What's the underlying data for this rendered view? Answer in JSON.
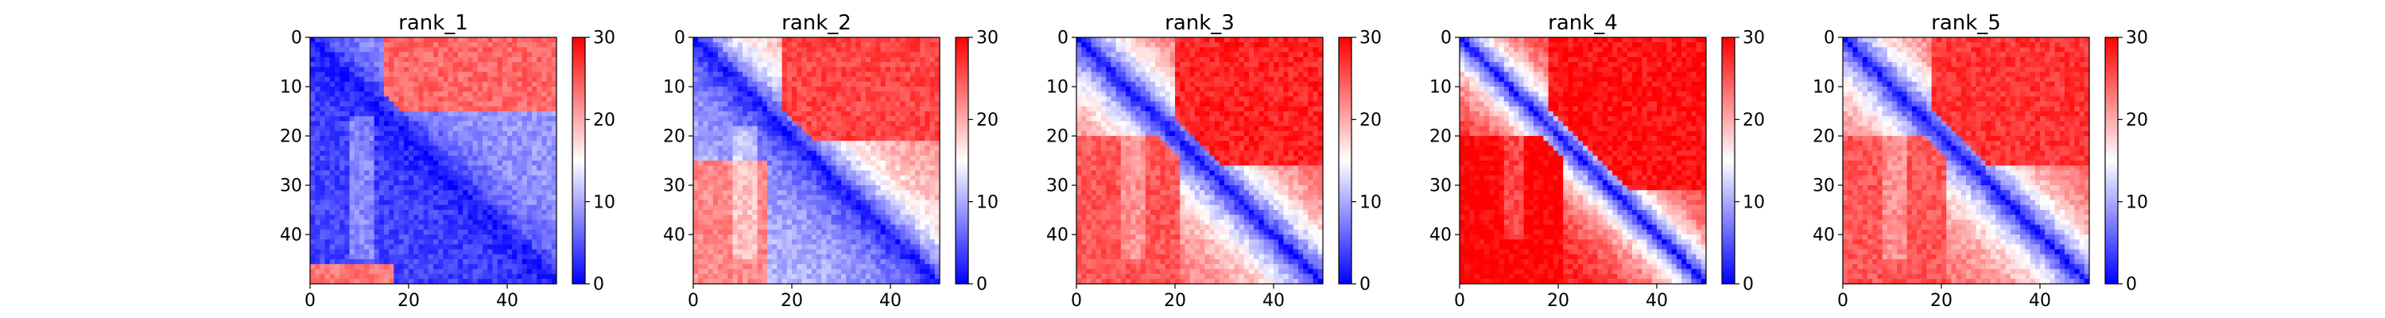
{
  "chart_data": [
    {
      "type": "heatmap",
      "title": "rank_1",
      "size": 50,
      "x_ticks": [
        "0",
        "20",
        "40"
      ],
      "y_ticks": [
        "0",
        "10",
        "20",
        "30",
        "40"
      ],
      "colorbar": {
        "range": [
          0,
          30
        ],
        "ticks": [
          "0",
          "10",
          "20",
          "30"
        ],
        "colormap": "bwr"
      },
      "pattern": {
        "diagonal_value": 1,
        "ramp_width": 6,
        "upper_asymptote": 9,
        "lower_asymptote": 4,
        "top_right_block": {
          "rows": [
            0,
            14
          ],
          "cols": [
            15,
            49
          ],
          "value": 24
        },
        "bottom_left_block": {
          "rows": [
            46,
            49
          ],
          "cols": [
            0,
            16
          ],
          "value": 23
        },
        "light_column": {
          "cols": [
            8,
            12
          ],
          "rows": [
            16,
            44
          ],
          "value": 12
        }
      }
    },
    {
      "type": "heatmap",
      "title": "rank_2",
      "size": 50,
      "x_ticks": [
        "0",
        "20",
        "40"
      ],
      "y_ticks": [
        "0",
        "10",
        "20",
        "30",
        "40"
      ],
      "colorbar": {
        "range": [
          0,
          30
        ],
        "ticks": [
          "0",
          "10",
          "20",
          "30"
        ],
        "colormap": "bwr"
      },
      "pattern": {
        "diagonal_value": 1,
        "ramp_width": 9,
        "upper_asymptote": 22,
        "lower_asymptote": 11,
        "top_right_block": {
          "rows": [
            0,
            20
          ],
          "cols": [
            18,
            49
          ],
          "value": 26
        },
        "bottom_left_block": {
          "rows": [
            25,
            49
          ],
          "cols": [
            0,
            14
          ],
          "value": 22
        },
        "light_column": {
          "cols": [
            8,
            12
          ],
          "rows": [
            18,
            44
          ],
          "value": 15
        }
      }
    },
    {
      "type": "heatmap",
      "title": "rank_3",
      "size": 50,
      "x_ticks": [
        "0",
        "20",
        "40"
      ],
      "y_ticks": [
        "0",
        "10",
        "20",
        "30",
        "40"
      ],
      "colorbar": {
        "range": [
          0,
          30
        ],
        "ticks": [
          "0",
          "10",
          "20",
          "30"
        ],
        "colormap": "bwr"
      },
      "pattern": {
        "diagonal_value": 1,
        "ramp_width": 10,
        "upper_asymptote": 26,
        "lower_asymptote": 24,
        "top_right_block": {
          "rows": [
            0,
            25
          ],
          "cols": [
            20,
            49
          ],
          "value": 28
        },
        "bottom_left_block": {
          "rows": [
            20,
            49
          ],
          "cols": [
            0,
            20
          ],
          "value": 25
        },
        "light_column": {
          "cols": [
            9,
            13
          ],
          "rows": [
            20,
            44
          ],
          "value": 18
        }
      }
    },
    {
      "type": "heatmap",
      "title": "rank_4",
      "size": 50,
      "x_ticks": [
        "0",
        "20",
        "40"
      ],
      "y_ticks": [
        "0",
        "10",
        "20",
        "30",
        "40"
      ],
      "colorbar": {
        "range": [
          0,
          30
        ],
        "ticks": [
          "0",
          "10",
          "20",
          "30"
        ],
        "colormap": "bwr"
      },
      "pattern": {
        "diagonal_value": 1,
        "ramp_width": 8,
        "upper_asymptote": 29,
        "lower_asymptote": 29,
        "top_right_block": {
          "rows": [
            0,
            30
          ],
          "cols": [
            18,
            49
          ],
          "value": 29
        },
        "bottom_left_block": {
          "rows": [
            20,
            49
          ],
          "cols": [
            0,
            20
          ],
          "value": 30
        },
        "light_column": {
          "cols": [
            9,
            12
          ],
          "rows": [
            20,
            40
          ],
          "value": 22
        }
      }
    },
    {
      "type": "heatmap",
      "title": "rank_5",
      "size": 50,
      "x_ticks": [
        "0",
        "20",
        "40"
      ],
      "y_ticks": [
        "0",
        "10",
        "20",
        "30",
        "40"
      ],
      "colorbar": {
        "range": [
          0,
          30
        ],
        "ticks": [
          "0",
          "10",
          "20",
          "30"
        ],
        "colormap": "bwr"
      },
      "pattern": {
        "diagonal_value": 1,
        "ramp_width": 9,
        "upper_asymptote": 26,
        "lower_asymptote": 24,
        "top_right_block": {
          "rows": [
            0,
            25
          ],
          "cols": [
            18,
            49
          ],
          "value": 27
        },
        "bottom_left_block": {
          "rows": [
            20,
            49
          ],
          "cols": [
            0,
            20
          ],
          "value": 25
        },
        "light_column": {
          "cols": [
            8,
            12
          ],
          "rows": [
            20,
            44
          ],
          "value": 18
        }
      }
    }
  ]
}
